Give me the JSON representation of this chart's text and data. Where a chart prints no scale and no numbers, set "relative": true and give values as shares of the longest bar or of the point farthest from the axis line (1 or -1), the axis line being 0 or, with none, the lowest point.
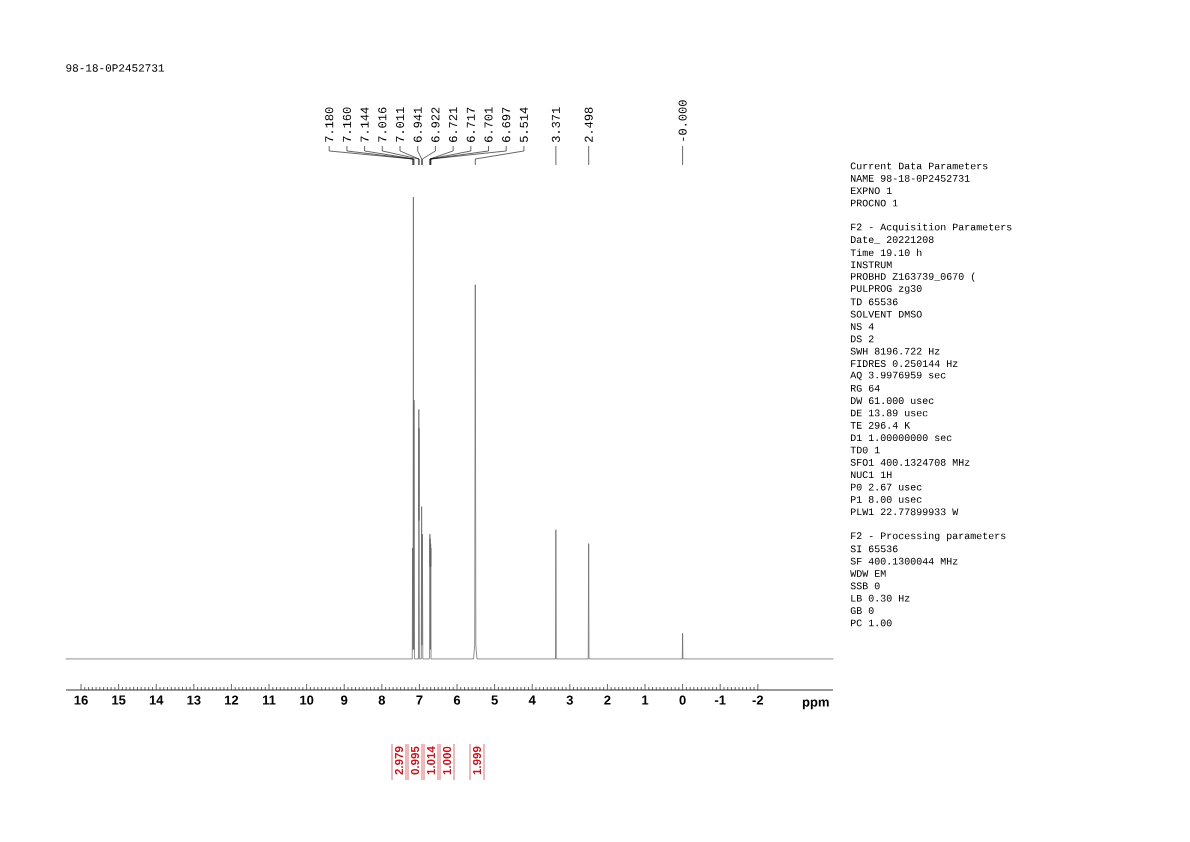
{
  "chart_data": {
    "type": "line",
    "title": "98-18-0P2452731",
    "xlabel": "ppm",
    "relative": true,
    "color": "#606060",
    "xlim": [
      16.4,
      -4.0
    ],
    "xticks": [
      16,
      15,
      14,
      13,
      12,
      11,
      10,
      9,
      8,
      7,
      6,
      5,
      4,
      3,
      2,
      1,
      0,
      -1,
      -2
    ],
    "x": [
      16.4,
      7.19,
      7.18,
      7.17,
      7.16,
      7.152,
      7.144,
      7.13,
      7.025,
      7.016,
      7.013,
      7.011,
      7.0,
      6.95,
      6.941,
      6.932,
      6.922,
      6.91,
      6.73,
      6.721,
      6.719,
      6.717,
      6.709,
      6.701,
      6.699,
      6.697,
      6.69,
      5.56,
      5.53,
      5.514,
      5.5,
      5.47,
      3.38,
      3.371,
      3.36,
      2.51,
      2.498,
      2.49,
      0.008,
      0.0,
      -0.008,
      -4.0
    ],
    "values": [
      0.063,
      0.063,
      0.288,
      0.082,
      1.0,
      0.082,
      0.588,
      0.063,
      0.063,
      0.569,
      0.344,
      0.531,
      0.063,
      0.063,
      0.372,
      0.091,
      0.316,
      0.063,
      0.063,
      0.316,
      0.25,
      0.307,
      0.082,
      0.297,
      0.25,
      0.288,
      0.063,
      0.063,
      0.091,
      0.822,
      0.091,
      0.063,
      0.063,
      0.325,
      0.063,
      0.063,
      0.297,
      0.063,
      0.063,
      0.115,
      0.063,
      0.063
    ],
    "annotations": [
      "7.180",
      "7.160",
      "7.144",
      "7.016",
      "7.011",
      "6.941",
      "6.922",
      "6.721",
      "6.717",
      "6.701",
      "6.697",
      "5.514",
      "3.371",
      "2.498",
      "-0.000",
      "2.979",
      "0.995",
      "1.014",
      "1.000",
      "1.999",
      "Current Data Parameters",
      "NAME 98-18-0P2452731",
      "EXPNO 1",
      "PROCNO 1",
      "F2 - Acquisition Parameters",
      "Date_ 20221208",
      "Time 19.10 h",
      "INSTRUM",
      "PROBHD Z163739_0670 (",
      "PULPROG zg30",
      "TD 65536",
      "SOLVENT DMSO",
      "NS 4",
      "DS 2",
      "SWH 8196.722 Hz",
      "FIDRES 0.250144 Hz",
      "AQ 3.9976959 sec",
      "RG 64",
      "DW 61.000 usec",
      "DE 13.89 usec",
      "TE 296.4 K",
      "D1 1.00000000 sec",
      "TD0 1",
      "SFO1 400.1324708 MHz",
      "NUC1 1H",
      "P0 2.67 usec",
      "P1 8.00 usec",
      "PLW1 22.77899933 W",
      "F2 - Processing parameters",
      "SI 65536",
      "SF 400.1300044 MHz",
      "WDW EM",
      "SSB 0",
      "LB 0.30 Hz",
      "GB 0",
      "PC 1.00"
    ]
  }
}
